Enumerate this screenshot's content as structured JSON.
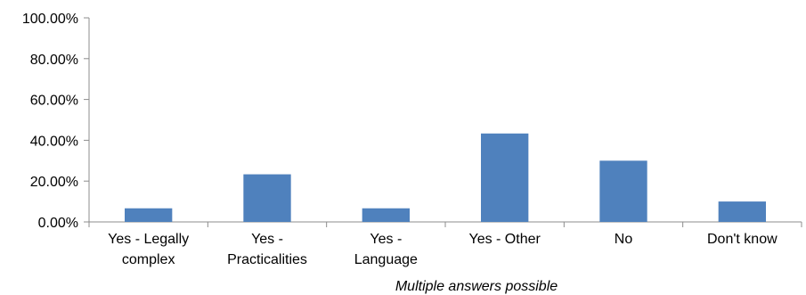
{
  "chart_data": {
    "type": "bar",
    "categories": [
      [
        "Yes - Legally",
        "complex"
      ],
      [
        "Yes -",
        "Practicalities"
      ],
      [
        "Yes -",
        "Language"
      ],
      [
        "Yes - Other"
      ],
      [
        "No"
      ],
      [
        "Don't know"
      ]
    ],
    "values": [
      6.67,
      23.33,
      6.67,
      43.33,
      30.0,
      10.0
    ],
    "yticks": [
      "0.00%",
      "20.00%",
      "40.00%",
      "60.00%",
      "80.00%",
      "100.00%"
    ],
    "ylim": [
      0,
      100
    ],
    "ystep": 20,
    "grid": false,
    "note": "Multiple answers possible",
    "bar_color": "#4f81bd",
    "axis_color": "#8c8c8c"
  }
}
